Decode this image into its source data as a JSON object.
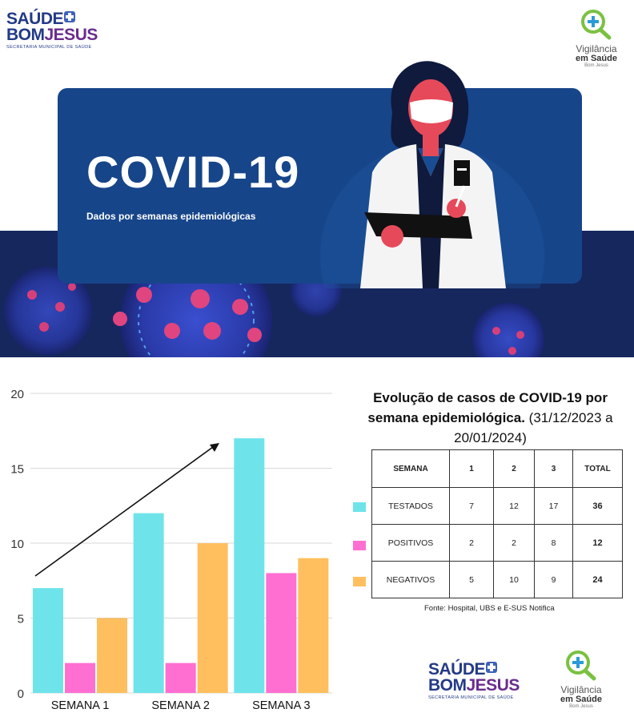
{
  "header": {
    "logo_line1": "SAÚDE",
    "logo_line2a": "BOM",
    "logo_line2b": "JESUS",
    "logo_sub": "SECRETARIA MUNICIPAL DE SAÚDE",
    "vig_line1": "Vigilância",
    "vig_line2": "em Saúde",
    "vig_line3": "Bom Jesus"
  },
  "banner": {
    "title": "COVID-19",
    "subtitle": "Dados por semanas epidemiológicas"
  },
  "panel": {
    "title_bold": "Evolução de casos de COVID-19 por semana epidemiológica.",
    "title_dates": "(31/12/2023 a 20/01/2024)",
    "source": "Fonte: Hospital, UBS e E-SUS Notifica"
  },
  "table": {
    "headers": [
      "SEMANA",
      "1",
      "2",
      "3",
      "TOTAL"
    ],
    "rows": [
      {
        "label": "TESTADOS",
        "w1": "7",
        "w2": "12",
        "w3": "17",
        "total": "36",
        "color": "#6ee4ea"
      },
      {
        "label": "POSITIVOS",
        "w1": "2",
        "w2": "2",
        "w3": "8",
        "total": "12",
        "color": "#ff6fd2"
      },
      {
        "label": "NEGATIVOS",
        "w1": "5",
        "w2": "10",
        "w3": "9",
        "total": "24",
        "color": "#ffbf5e"
      }
    ]
  },
  "colors": {
    "testados": "#6ee4ea",
    "positivos": "#ff6fd2",
    "negativos": "#ffbf5e",
    "banner_card": "#17458a",
    "brand_blue": "#233a86"
  },
  "chart_data": {
    "type": "bar",
    "categories": [
      "SEMANA 1",
      "SEMANA 2",
      "SEMANA 3"
    ],
    "series": [
      {
        "values": [
          7,
          12,
          17
        ],
        "color": "#6ee4ea"
      },
      {
        "values": [
          2,
          2,
          8
        ],
        "color": "#ff6fd2"
      },
      {
        "values": [
          5,
          10,
          9
        ],
        "color": "#ffbf5e"
      }
    ],
    "yticks": [
      "0",
      "5",
      "10",
      "15",
      "20"
    ],
    "ylim": [
      0,
      20
    ],
    "grid": true,
    "trend_arrow": true
  }
}
